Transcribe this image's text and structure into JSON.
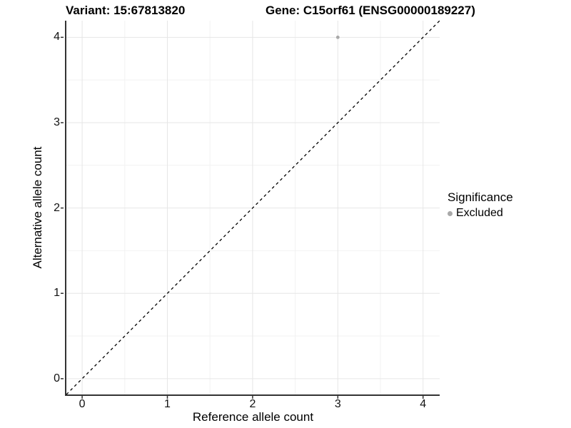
{
  "header": {
    "variant_title": "Variant: 15:67813820",
    "gene_title": "Gene: C15orf61 (ENSG00000189227)"
  },
  "chart_data": {
    "type": "scatter",
    "xlabel": "Reference allele count",
    "ylabel": "Alternative allele count",
    "xlim": [
      -0.185,
      4.195
    ],
    "ylim": [
      -0.185,
      4.195
    ],
    "x_ticks": [
      0,
      1,
      2,
      3,
      4
    ],
    "y_ticks": [
      0,
      1,
      2,
      3,
      4
    ],
    "x_minor_ticks": [
      0.5,
      1.5,
      2.5,
      3.5
    ],
    "y_minor_ticks": [
      0.5,
      1.5,
      2.5,
      3.5
    ],
    "grid": true,
    "series": [
      {
        "name": "Excluded",
        "color": "#a9a9a9",
        "points": [
          {
            "x": 3,
            "y": 4
          }
        ]
      }
    ],
    "identity_line": {
      "style": "dashed",
      "from": [
        -0.185,
        -0.185
      ],
      "to": [
        4.195,
        4.195
      ],
      "color": "#000000"
    },
    "legend": {
      "title": "Significance",
      "position": "right",
      "items": [
        {
          "label": "Excluded",
          "color": "#a9a9a9"
        }
      ]
    }
  },
  "colors": {
    "background": "#ffffff",
    "grid_major": "#e6e6e6",
    "grid_minor": "#f2f2f2",
    "axis_line": "#333333",
    "tick_mark": "#333333",
    "point": "#a9a9a9",
    "text": "#000000"
  }
}
